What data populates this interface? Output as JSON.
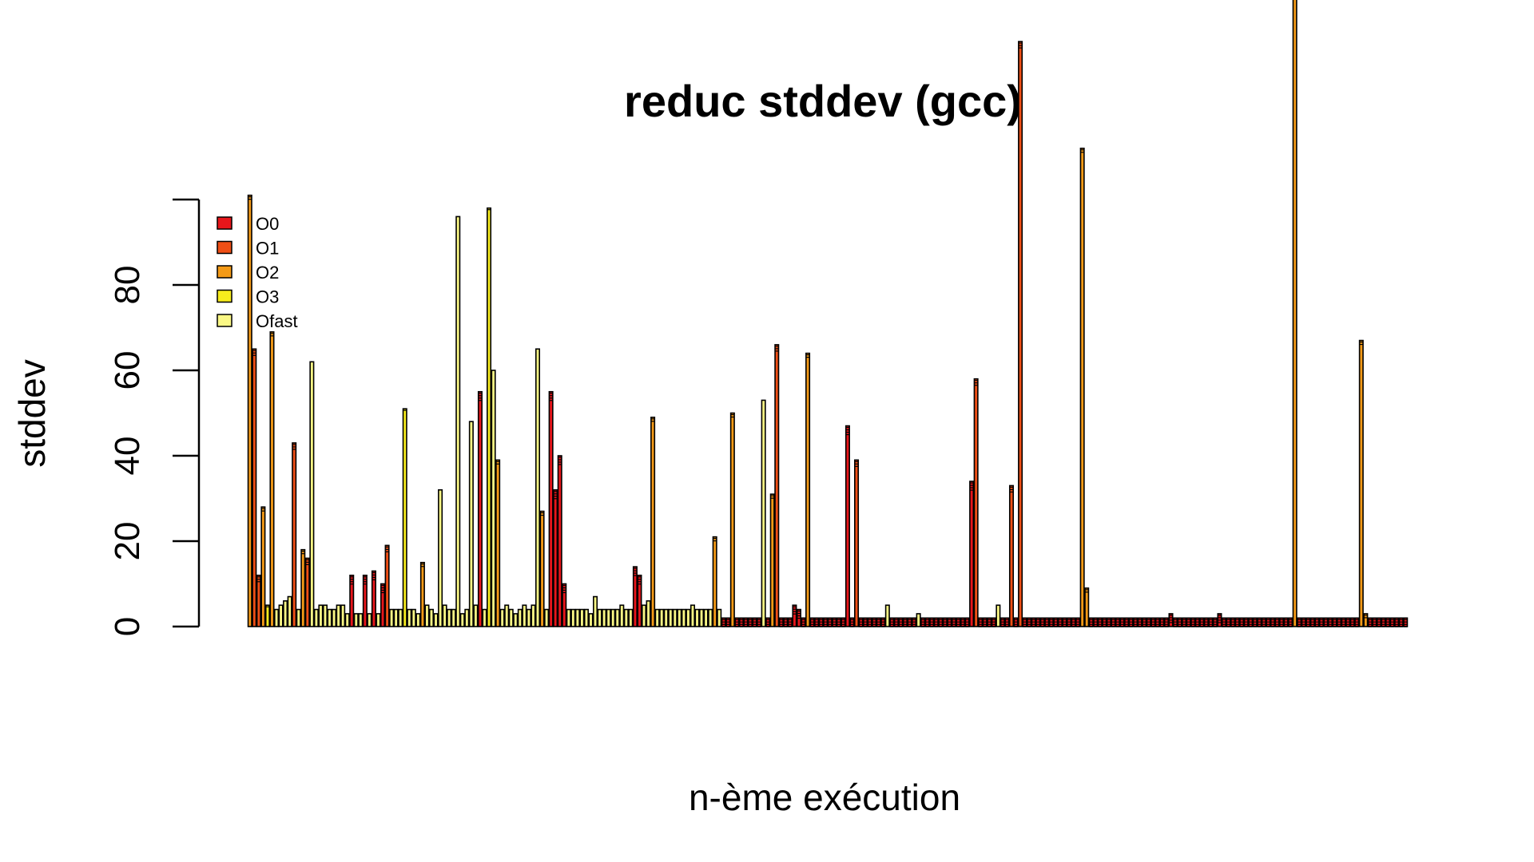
{
  "chart_data": {
    "type": "bar",
    "stacked": true,
    "title": "reduc stddev (gcc)",
    "xlabel": "n-ème exécution",
    "ylabel": "stddev",
    "ylim": [
      0,
      100
    ],
    "yticks": [
      "0",
      "20",
      "40",
      "60",
      "80"
    ],
    "grid": false,
    "legend_position": "top-left",
    "colors": {
      "O0": "#e8161b",
      "O1": "#ef4f16",
      "O2": "#f49a17",
      "O3": "#f7ec1d",
      "Ofast": "#fbf885"
    },
    "series": [
      {
        "name": "O0"
      },
      {
        "name": "O1"
      },
      {
        "name": "O2"
      },
      {
        "name": "O3"
      },
      {
        "name": "Ofast"
      }
    ],
    "totals": [
      101,
      65,
      12,
      28,
      5,
      69,
      4,
      5,
      6,
      7,
      43,
      4,
      18,
      16,
      62,
      4,
      5,
      5,
      4,
      4,
      5,
      5,
      3,
      12,
      3,
      3,
      12,
      3,
      13,
      3,
      10,
      19,
      4,
      4,
      4,
      51,
      4,
      4,
      3,
      15,
      5,
      4,
      3,
      32,
      5,
      4,
      4,
      96,
      3,
      4,
      48,
      5,
      55,
      4,
      98,
      60,
      39,
      4,
      5,
      4,
      3,
      4,
      5,
      4,
      5,
      65,
      27,
      4,
      55,
      32,
      40,
      10,
      4,
      4,
      4,
      4,
      4,
      3,
      7,
      4,
      4,
      4,
      4,
      4,
      5,
      4,
      4,
      14,
      12,
      5,
      6,
      49,
      4,
      4,
      4,
      4,
      4,
      4,
      4,
      4,
      5,
      4,
      4,
      4,
      4,
      21,
      4,
      2,
      2,
      50,
      2,
      2,
      2,
      2,
      2,
      2,
      53,
      2,
      31,
      66,
      2,
      2,
      2,
      5,
      4,
      2,
      64,
      2,
      2,
      2,
      2,
      2,
      2,
      2,
      2,
      47,
      2,
      39,
      2,
      2,
      2,
      2,
      2,
      2,
      5,
      2,
      2,
      2,
      2,
      2,
      2,
      3,
      2,
      2,
      2,
      2,
      2,
      2,
      2,
      2,
      2,
      2,
      2,
      34,
      58,
      2,
      2,
      2,
      2,
      5,
      2,
      2,
      33,
      2,
      137,
      2,
      2,
      2,
      2,
      2,
      2,
      2,
      2,
      2,
      2,
      2,
      2,
      2,
      112,
      9,
      2,
      2,
      2,
      2,
      2,
      2,
      2,
      2,
      2,
      2,
      2,
      2,
      2,
      2,
      2,
      2,
      2,
      2,
      3,
      2,
      2,
      2,
      2,
      2,
      2,
      2,
      2,
      2,
      2,
      3,
      2,
      2,
      2,
      2,
      2,
      2,
      2,
      2,
      2,
      2,
      2,
      2,
      2,
      2,
      2,
      2,
      230,
      2,
      2,
      2,
      2,
      2,
      2,
      2,
      2,
      2,
      2,
      2,
      2,
      2,
      2,
      67,
      3,
      2,
      2,
      2,
      2,
      2,
      2,
      2,
      2,
      2
    ],
    "dominant": [
      "O2",
      "O1",
      "O1",
      "O2",
      "O3",
      "O2",
      "Ofast",
      "Ofast",
      "Ofast",
      "Ofast",
      "O1",
      "Ofast",
      "O2",
      "O1",
      "Ofast",
      "Ofast",
      "Ofast",
      "Ofast",
      "Ofast",
      "Ofast",
      "Ofast",
      "Ofast",
      "Ofast",
      "O0",
      "Ofast",
      "Ofast",
      "O0",
      "Ofast",
      "O0",
      "Ofast",
      "O0",
      "O1",
      "Ofast",
      "Ofast",
      "Ofast",
      "O3",
      "Ofast",
      "Ofast",
      "Ofast",
      "O2",
      "Ofast",
      "Ofast",
      "Ofast",
      "Ofast",
      "Ofast",
      "Ofast",
      "Ofast",
      "Ofast",
      "Ofast",
      "Ofast",
      "Ofast",
      "Ofast",
      "O0",
      "Ofast",
      "O3",
      "Ofast",
      "O2",
      "Ofast",
      "Ofast",
      "Ofast",
      "Ofast",
      "Ofast",
      "Ofast",
      "Ofast",
      "Ofast",
      "Ofast",
      "O2",
      "Ofast",
      "O0",
      "O0",
      "O0",
      "O0",
      "Ofast",
      "Ofast",
      "Ofast",
      "Ofast",
      "Ofast",
      "Ofast",
      "Ofast",
      "Ofast",
      "Ofast",
      "Ofast",
      "Ofast",
      "Ofast",
      "Ofast",
      "Ofast",
      "Ofast",
      "O0",
      "O0",
      "Ofast",
      "Ofast",
      "O2",
      "Ofast",
      "Ofast",
      "Ofast",
      "Ofast",
      "Ofast",
      "Ofast",
      "Ofast",
      "Ofast",
      "Ofast",
      "Ofast",
      "Ofast",
      "Ofast",
      "Ofast",
      "O2",
      "Ofast",
      "O0",
      "O0",
      "O2",
      "O0",
      "O0",
      "O0",
      "O0",
      "O0",
      "O0",
      "Ofast",
      "O0",
      "O2",
      "O1",
      "O0",
      "O0",
      "O0",
      "O0",
      "O0",
      "O0",
      "O2",
      "O0",
      "O0",
      "O0",
      "O0",
      "O0",
      "O0",
      "O0",
      "O0",
      "O0",
      "O0",
      "O1",
      "O0",
      "O0",
      "O0",
      "O0",
      "O0",
      "O0",
      "Ofast",
      "O0",
      "O0",
      "O0",
      "O0",
      "O0",
      "O0",
      "Ofast",
      "O0",
      "O0",
      "O0",
      "O0",
      "O0",
      "O0",
      "O0",
      "O0",
      "O0",
      "O0",
      "O0",
      "O0",
      "O1",
      "O0",
      "O0",
      "O0",
      "O0",
      "Ofast",
      "O0",
      "O0",
      "O1",
      "O0",
      "O1",
      "O0",
      "O0",
      "O0",
      "O0",
      "O0",
      "O0",
      "O0",
      "O0",
      "O0",
      "O0",
      "O0",
      "O0",
      "O0",
      "O2",
      "O2",
      "O0",
      "O0",
      "O0",
      "O0",
      "O0",
      "O0",
      "O0",
      "O0",
      "O0",
      "O0",
      "O0",
      "O0",
      "O0",
      "O0",
      "O0",
      "O0",
      "O0",
      "O0",
      "O0",
      "O0",
      "O0",
      "O0",
      "O0",
      "O0",
      "O0",
      "O0",
      "O0",
      "O0",
      "O0",
      "O0",
      "O0",
      "O0",
      "O0",
      "O0",
      "O0",
      "O0",
      "O0",
      "O0",
      "O0",
      "O0",
      "O0",
      "O0",
      "O0",
      "O0",
      "O0",
      "O0",
      "O2",
      "O0",
      "O0",
      "O0",
      "O0",
      "O0",
      "O0",
      "O0",
      "O0",
      "O0",
      "O0",
      "O0",
      "O0",
      "O0",
      "O0",
      "O2",
      "O2",
      "O0",
      "O0",
      "O0",
      "O0",
      "O0",
      "O0",
      "O0",
      "O0",
      "O0"
    ]
  }
}
